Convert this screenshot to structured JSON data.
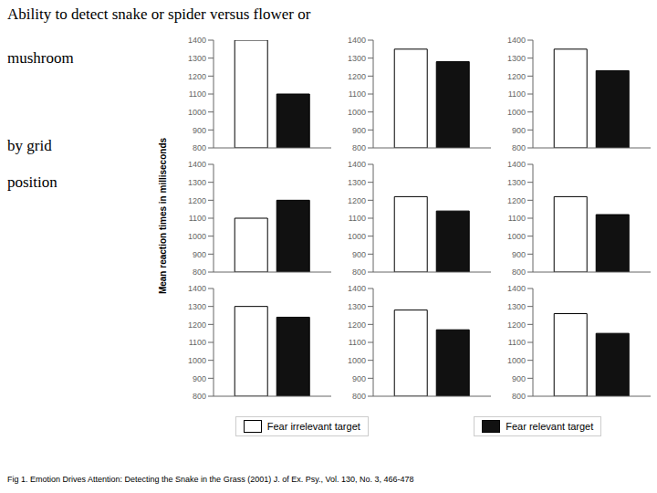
{
  "chart_data": [
    {
      "type": "bar",
      "title": "Ability to detect snake or spider versus flower or\nmushroom",
      "subtitle": "by grid\nposition",
      "ylabel": "Mean reaction times in milliseconds",
      "caption": "Fig 1.  Emotion Drives Attention: Detecting the Snake in the Grass (2001) J. of Ex. Psy., Vol. 130, No. 3, 466-478",
      "legend": "bottom",
      "grid": false,
      "tick_labels": "y",
      "categories": [
        null
      ],
      "ylim": [
        800,
        1400
      ],
      "yticks": [
        800,
        900,
        1000,
        1100,
        1200,
        1300,
        1400
      ],
      "series": [
        {
          "name": "Fear irrelevant target",
          "color": "#ffffff",
          "values": [
            1400
          ]
        },
        {
          "name": "Fear relevant target",
          "color": "#111111",
          "values": [
            1100
          ]
        }
      ]
    },
    {
      "type": "bar",
      "grid": false,
      "tick_labels": "y",
      "categories": [
        null
      ],
      "ylim": [
        800,
        1400
      ],
      "yticks": [
        800,
        900,
        1000,
        1100,
        1200,
        1300,
        1400
      ],
      "series": [
        {
          "name": "Fear irrelevant target",
          "color": "#ffffff",
          "values": [
            1350
          ]
        },
        {
          "name": "Fear relevant target",
          "color": "#111111",
          "values": [
            1280
          ]
        }
      ]
    },
    {
      "type": "bar",
      "grid": false,
      "tick_labels": "y",
      "categories": [
        null
      ],
      "ylim": [
        800,
        1400
      ],
      "yticks": [
        800,
        900,
        1000,
        1100,
        1200,
        1300,
        1400
      ],
      "series": [
        {
          "name": "Fear irrelevant target",
          "color": "#ffffff",
          "values": [
            1350
          ]
        },
        {
          "name": "Fear relevant target",
          "color": "#111111",
          "values": [
            1230
          ]
        }
      ]
    },
    {
      "type": "bar",
      "grid": false,
      "tick_labels": "y",
      "categories": [
        null
      ],
      "ylim": [
        800,
        1400
      ],
      "yticks": [
        800,
        900,
        1000,
        1100,
        1200,
        1300,
        1400
      ],
      "series": [
        {
          "name": "Fear irrelevant target",
          "color": "#ffffff",
          "values": [
            1100
          ]
        },
        {
          "name": "Fear relevant target",
          "color": "#111111",
          "values": [
            1200
          ]
        }
      ]
    },
    {
      "type": "bar",
      "grid": false,
      "tick_labels": "y",
      "categories": [
        null
      ],
      "ylim": [
        800,
        1400
      ],
      "yticks": [
        800,
        900,
        1000,
        1100,
        1200,
        1300,
        1400
      ],
      "series": [
        {
          "name": "Fear irrelevant target",
          "color": "#ffffff",
          "values": [
            1220
          ]
        },
        {
          "name": "Fear relevant target",
          "color": "#111111",
          "values": [
            1140
          ]
        }
      ]
    },
    {
      "type": "bar",
      "grid": false,
      "tick_labels": "y",
      "categories": [
        null
      ],
      "ylim": [
        800,
        1400
      ],
      "yticks": [
        800,
        900,
        1000,
        1100,
        1200,
        1300,
        1400
      ],
      "series": [
        {
          "name": "Fear irrelevant target",
          "color": "#ffffff",
          "values": [
            1220
          ]
        },
        {
          "name": "Fear relevant target",
          "color": "#111111",
          "values": [
            1120
          ]
        }
      ]
    },
    {
      "type": "bar",
      "grid": false,
      "tick_labels": "y",
      "categories": [
        null
      ],
      "ylim": [
        800,
        1400
      ],
      "yticks": [
        800,
        900,
        1000,
        1100,
        1200,
        1300,
        1400
      ],
      "series": [
        {
          "name": "Fear irrelevant target",
          "color": "#ffffff",
          "values": [
            1300
          ]
        },
        {
          "name": "Fear relevant target",
          "color": "#111111",
          "values": [
            1240
          ]
        }
      ]
    },
    {
      "type": "bar",
      "grid": false,
      "tick_labels": "y",
      "categories": [
        null
      ],
      "ylim": [
        800,
        1400
      ],
      "yticks": [
        800,
        900,
        1000,
        1100,
        1200,
        1300,
        1400
      ],
      "series": [
        {
          "name": "Fear irrelevant target",
          "color": "#ffffff",
          "values": [
            1280
          ]
        },
        {
          "name": "Fear relevant target",
          "color": "#111111",
          "values": [
            1170
          ]
        }
      ]
    },
    {
      "type": "bar",
      "grid": false,
      "tick_labels": "y",
      "categories": [
        null
      ],
      "ylim": [
        800,
        1400
      ],
      "yticks": [
        800,
        900,
        1000,
        1100,
        1200,
        1300,
        1400
      ],
      "series": [
        {
          "name": "Fear irrelevant target",
          "color": "#ffffff",
          "values": [
            1260
          ]
        },
        {
          "name": "Fear relevant target",
          "color": "#111111",
          "values": [
            1150
          ]
        }
      ]
    }
  ]
}
